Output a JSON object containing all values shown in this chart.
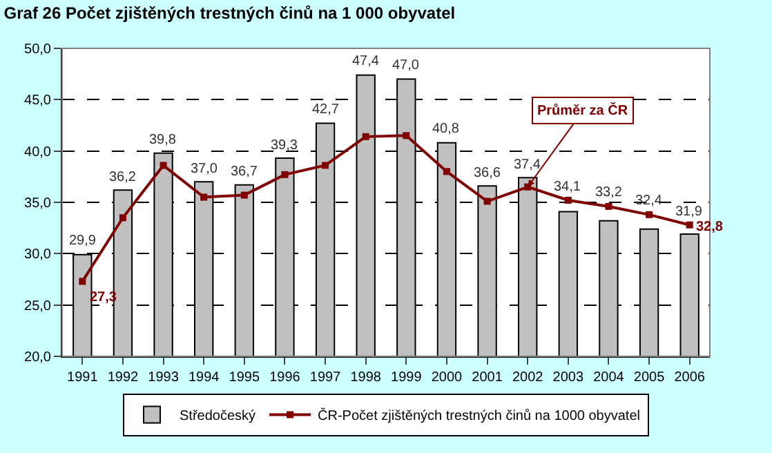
{
  "chart_data": {
    "type": "bar",
    "title": "Graf 26 Počet zjištěných trestných činů na 1 000 obyvatel",
    "categories": [
      "1991",
      "1992",
      "1993",
      "1994",
      "1995",
      "1996",
      "1997",
      "1998",
      "1999",
      "2000",
      "2001",
      "2002",
      "2003",
      "2004",
      "2005",
      "2006"
    ],
    "series": [
      {
        "name": "Středočeský",
        "color": "#c0c0c0",
        "values": [
          29.9,
          36.2,
          39.8,
          37.0,
          36.7,
          39.3,
          42.7,
          47.4,
          47.0,
          40.8,
          36.6,
          37.4,
          34.1,
          33.2,
          32.4,
          31.9
        ],
        "value_labels": [
          "29,9",
          "36,2",
          "39,8",
          "37,0",
          "36,7",
          "39,3",
          "42,7",
          "47,4",
          "47,0",
          "40,8",
          "36,6",
          "37,4",
          "34,1",
          "33,2",
          "32,4",
          "31,9"
        ]
      },
      {
        "name": "ČR-Počet zjištěných trestných činů na 1000 obyvatel",
        "type": "line",
        "color": "#800000",
        "marker": "square",
        "values": [
          27.3,
          33.5,
          38.6,
          35.5,
          35.7,
          37.7,
          38.6,
          41.4,
          41.5,
          38.0,
          35.1,
          36.5,
          35.2,
          34.6,
          33.8,
          32.8
        ],
        "value_labels": [
          "27,3",
          null,
          null,
          null,
          null,
          null,
          null,
          null,
          null,
          null,
          null,
          null,
          null,
          null,
          null,
          "32,8"
        ]
      }
    ],
    "annotations": [
      {
        "text": "Průměr za ČR",
        "x": "2002",
        "y": 36.5
      }
    ],
    "ylim": [
      20,
      50
    ],
    "yticks": [
      {
        "value": 20,
        "label": "20,0"
      },
      {
        "value": 25,
        "label": "25,0"
      },
      {
        "value": 30,
        "label": "30,0"
      },
      {
        "value": 35,
        "label": "35,0"
      },
      {
        "value": 40,
        "label": "40,0"
      },
      {
        "value": 45,
        "label": "45,0"
      },
      {
        "value": 50,
        "label": "50,0"
      }
    ],
    "grid": "y",
    "legend": "bottom"
  }
}
